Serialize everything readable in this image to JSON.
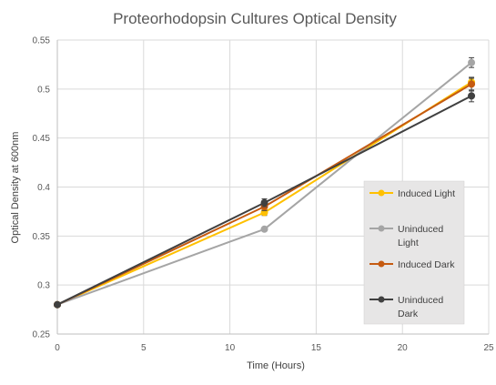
{
  "chart_data": {
    "type": "line",
    "title": "Proteorhodopsin Cultures Optical Density",
    "xlabel": "Time (Hours)",
    "ylabel": "Optical Density at 600nm",
    "xlim": [
      0,
      25
    ],
    "ylim": [
      0.25,
      0.55
    ],
    "x_ticks": [
      "0",
      "5",
      "10",
      "15",
      "20",
      "25"
    ],
    "y_ticks": [
      "0.25",
      "0.3",
      "0.35",
      "0.4",
      "0.45",
      "0.5",
      "0.55"
    ],
    "grid": true,
    "legend_position": "right",
    "series": [
      {
        "name": "Induced Light",
        "color": "#FFC000",
        "x": [
          0,
          12,
          24
        ],
        "y": [
          0.28,
          0.374,
          0.507
        ],
        "error": [
          0,
          0.003,
          0.004
        ]
      },
      {
        "name": "Uninduced Light",
        "color": "#A5A5A5",
        "x": [
          0,
          12,
          24
        ],
        "y": [
          0.28,
          0.357,
          0.527
        ],
        "error": [
          0,
          0,
          0.005
        ]
      },
      {
        "name": "Induced Dark",
        "color": "#C55A11",
        "x": [
          0,
          12,
          24
        ],
        "y": [
          0.28,
          0.38,
          0.505
        ],
        "error": [
          0,
          0.004,
          0.007
        ]
      },
      {
        "name": "Uninduced Dark",
        "color": "#404040",
        "x": [
          0,
          12,
          24
        ],
        "y": [
          0.28,
          0.384,
          0.493
        ],
        "error": [
          0,
          0.004,
          0.006
        ]
      }
    ],
    "legend_labels": [
      [
        "Induced Light"
      ],
      [
        "Uninduced",
        "Light"
      ],
      [
        "Induced Dark"
      ],
      [
        "Uninduced",
        "Dark"
      ]
    ]
  }
}
